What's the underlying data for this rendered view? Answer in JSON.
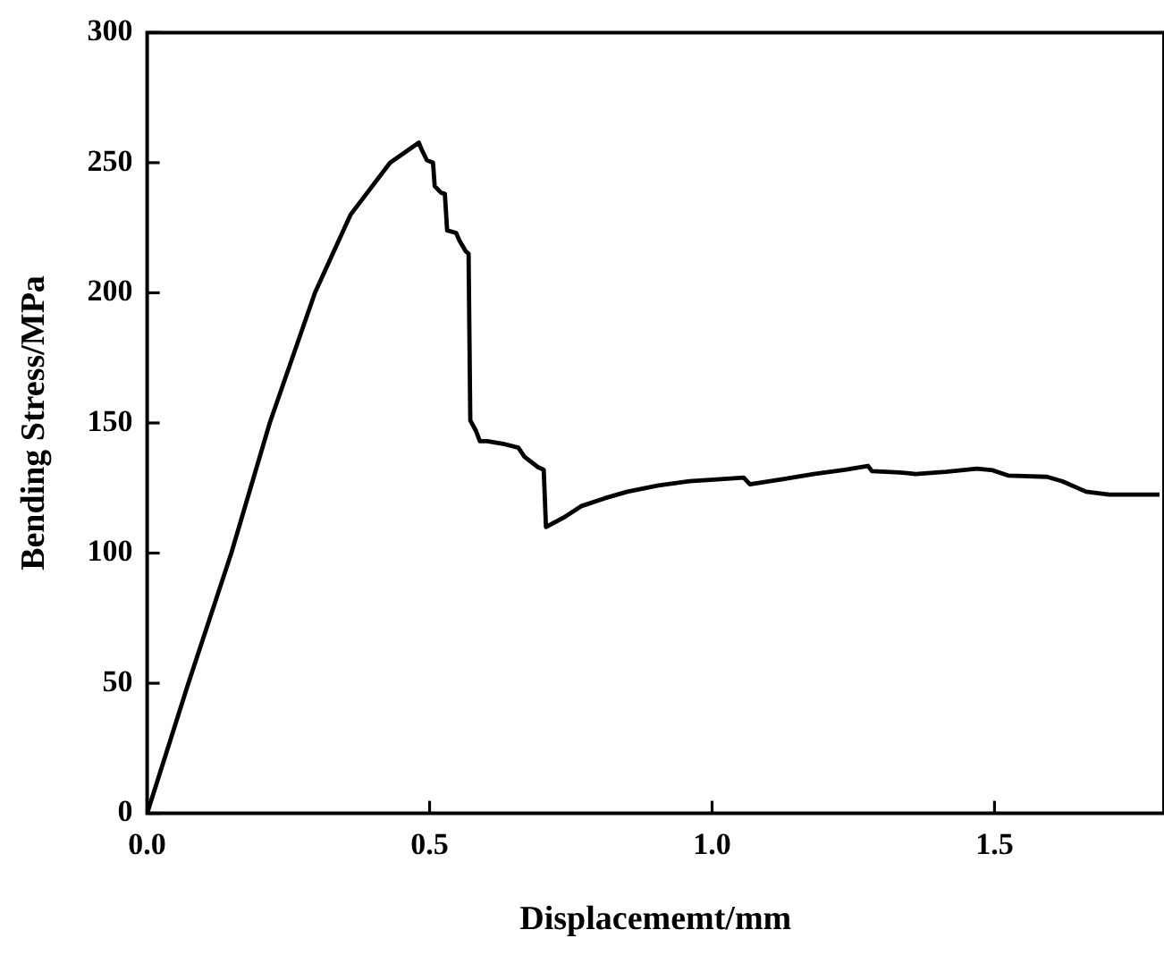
{
  "chart_data": {
    "type": "line",
    "xlabel": "Displacememt/mm",
    "ylabel": "Bending Stress/MPa",
    "xlim": [
      0,
      1.8
    ],
    "xticks": [
      {
        "value": 0,
        "label": "0.0"
      },
      0.5,
      {
        "value": 1,
        "label": "1.0"
      },
      1.5
    ],
    "ylim": [
      0,
      300
    ],
    "yticks": [
      0,
      50,
      100,
      150,
      200,
      250,
      300
    ],
    "grid": false,
    "legend": false,
    "marker": "none",
    "line_style": "solid",
    "series": [
      {
        "color": "#000000",
        "x": [
          0,
          0.073,
          0.149,
          0.217,
          0.297,
          0.36,
          0.43,
          0.481,
          0.486,
          0.495,
          0.506,
          0.509,
          0.52,
          0.527,
          0.531,
          0.547,
          0.553,
          0.564,
          0.569,
          0.572,
          0.582,
          0.589,
          0.602,
          0.63,
          0.657,
          0.668,
          0.692,
          0.702,
          0.706,
          0.74,
          0.768,
          0.809,
          0.85,
          0.905,
          0.96,
          1.015,
          1.056,
          1.067,
          1.125,
          1.18,
          1.235,
          1.276,
          1.283,
          1.332,
          1.36,
          1.414,
          1.469,
          1.497,
          1.524,
          1.593,
          1.62,
          1.662,
          1.703,
          1.792
        ],
        "values": [
          0,
          50,
          100,
          150,
          200,
          230,
          250,
          257.7,
          255,
          251,
          250,
          241,
          238.5,
          238,
          224,
          223,
          220,
          216,
          215,
          151,
          147,
          143,
          143,
          142,
          140.5,
          137,
          133,
          132,
          110,
          114,
          118,
          121,
          123.6,
          126,
          127.6,
          128.4,
          129,
          126.4,
          128.4,
          130.4,
          132,
          133.5,
          131.5,
          131,
          130.4,
          131.2,
          132.4,
          131.8,
          129.8,
          129.3,
          127.6,
          123.6,
          122.5,
          122.5
        ]
      }
    ]
  }
}
